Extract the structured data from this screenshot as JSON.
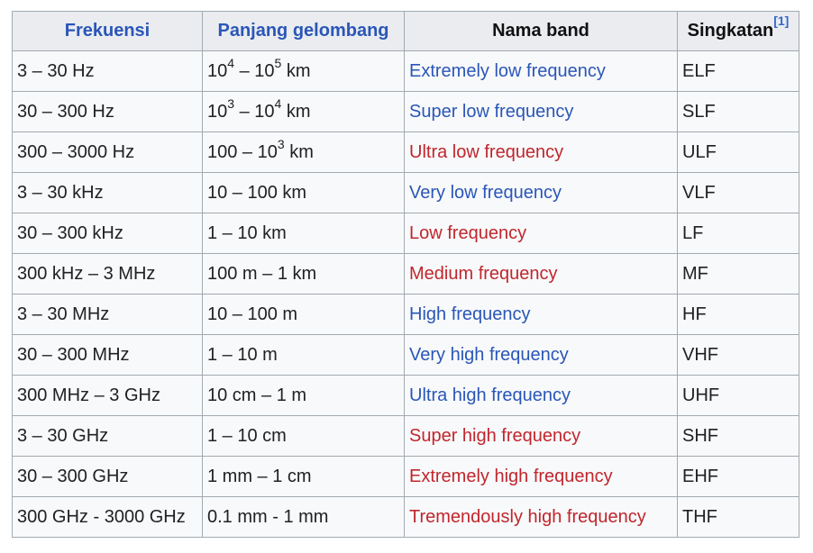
{
  "header": {
    "frequency": "Frekuensi",
    "wavelength": "Panjang gelombang",
    "band_name": "Nama band",
    "abbreviation": "Singkatan",
    "abbreviation_ref": "[1]"
  },
  "colors": {
    "link_blue": "#2a56b8",
    "link_red": "#c0262d"
  },
  "rows": [
    {
      "frequency": "3 – 30 Hz",
      "wl_a": "10",
      "wl_a_exp": "4",
      "wl_mid": " – ",
      "wl_b": "10",
      "wl_b_exp": "5",
      "wl_unit": " km",
      "band": "Extremely low frequency",
      "band_link": "blue",
      "abbr": "ELF"
    },
    {
      "frequency": "30 – 300 Hz",
      "wl_a": "10",
      "wl_a_exp": "3",
      "wl_mid": " – ",
      "wl_b": "10",
      "wl_b_exp": "4",
      "wl_unit": " km",
      "band": "Super low frequency",
      "band_link": "blue",
      "abbr": "SLF"
    },
    {
      "frequency": "300 – 3000 Hz",
      "wl_a": "100 – 10",
      "wl_a_exp": "3",
      "wl_unit": " km",
      "band": "Ultra low frequency",
      "band_link": "red",
      "abbr": "ULF"
    },
    {
      "frequency": "3 – 30 kHz",
      "wavelength": "10 – 100 km",
      "band": "Very low frequency",
      "band_link": "blue",
      "abbr": "VLF"
    },
    {
      "frequency": "30 – 300 kHz",
      "wavelength": "1 – 10 km",
      "band": "Low frequency",
      "band_link": "red",
      "abbr": "LF"
    },
    {
      "frequency": "300 kHz – 3 MHz",
      "wavelength": "100 m – 1 km",
      "band": "Medium frequency",
      "band_link": "red",
      "abbr": "MF"
    },
    {
      "frequency": "3 – 30 MHz",
      "wavelength": "10 – 100 m",
      "band": "High frequency",
      "band_link": "blue",
      "abbr": "HF"
    },
    {
      "frequency": "30 – 300 MHz",
      "wavelength": "1 – 10 m",
      "band": "Very high frequency",
      "band_link": "blue",
      "abbr": "VHF"
    },
    {
      "frequency": "300 MHz – 3 GHz",
      "wavelength": "10 cm – 1 m",
      "band": "Ultra high frequency",
      "band_link": "blue",
      "abbr": "UHF"
    },
    {
      "frequency": "3 – 30 GHz",
      "wavelength": "1 – 10 cm",
      "band": "Super high frequency",
      "band_link": "red",
      "abbr": "SHF"
    },
    {
      "frequency": "30 – 300 GHz",
      "wavelength": "1 mm – 1 cm",
      "band": "Extremely high frequency",
      "band_link": "red",
      "abbr": "EHF"
    },
    {
      "frequency": "300 GHz - 3000 GHz",
      "wavelength": "0.1 mm - 1 mm",
      "band": "Tremendously high frequency",
      "band_link": "red",
      "abbr": "THF"
    }
  ]
}
